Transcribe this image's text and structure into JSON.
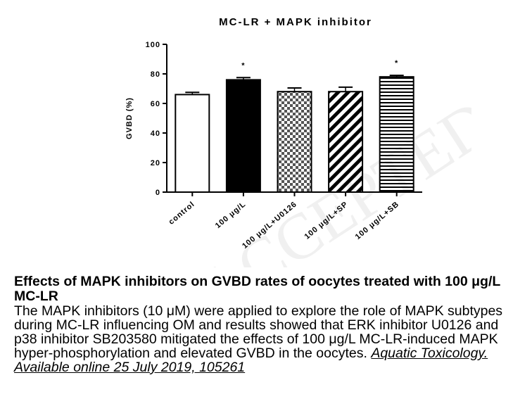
{
  "chart_data": {
    "type": "bar",
    "title": "MC-LR + MAPK inhibitor",
    "xlabel": "",
    "ylabel": "GVBD (%)",
    "ylim": [
      0,
      100
    ],
    "yticks": [
      "0",
      "20",
      "40",
      "60",
      "80",
      "100"
    ],
    "categories": [
      "control",
      "100 μg/L",
      "100 μg/L+U0126",
      "100 μg/L+SP",
      "100 μg/L+SB"
    ],
    "values": [
      66,
      76,
      68,
      68,
      78
    ],
    "errors": [
      1.5,
      1.5,
      2.5,
      3,
      1
    ],
    "significance": [
      "",
      "*",
      "",
      "",
      "*"
    ],
    "fills": [
      "white",
      "black",
      "checkered",
      "diagonal",
      "horizontal-lines"
    ],
    "grid": false
  },
  "watermark": "ACCEPTED MANUSCRIPT",
  "caption": {
    "title": "Effects of MAPK inhibitors on GVBD rates of oocytes treated with 100 μg/L MC-LR",
    "body": "The MAPK inhibitors (10 μM) were applied to explore the role of MAPK subtypes during MC-LR influencing OM and results showed that ERK inhibitor U0126 and p38 inhibitor SB203580 mitigated the effects of 100 μg/L MC-LR-induced MAPK hyper-phosphorylation and elevated GVBD in the oocytes. ",
    "citation": "Aquatic Toxicology. Available online 25 July 2019, 105261"
  }
}
